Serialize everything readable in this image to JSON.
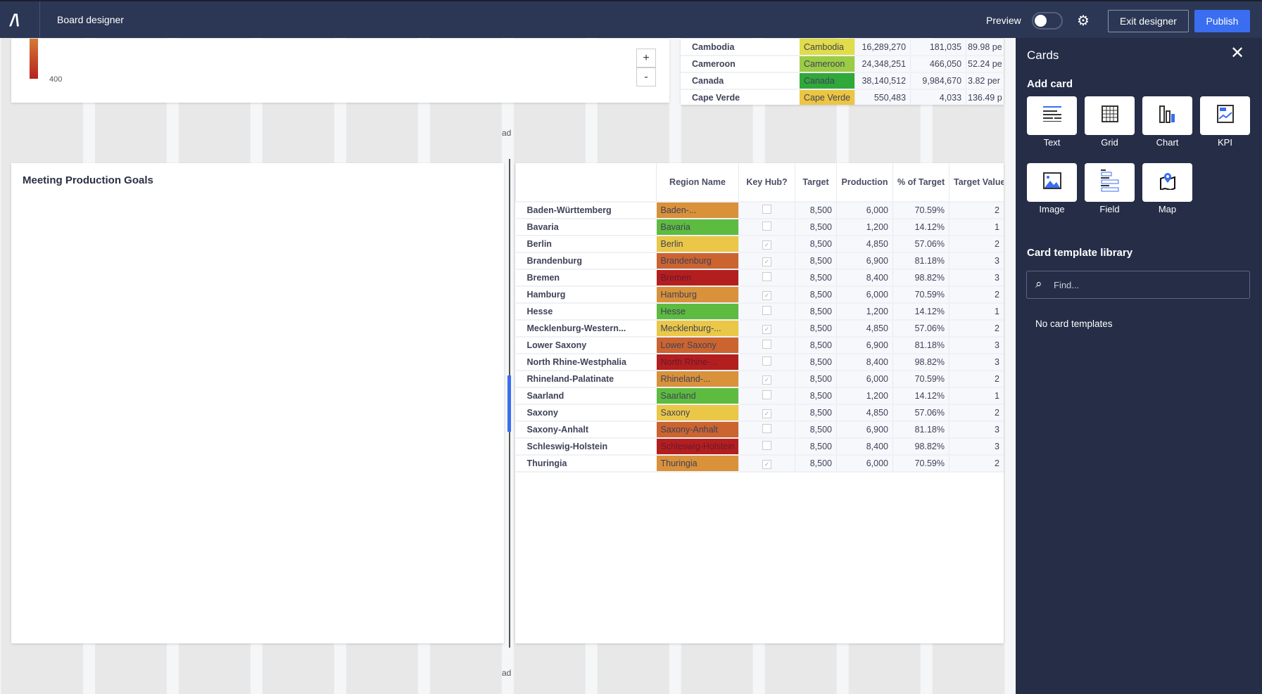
{
  "header": {
    "title": "Board designer",
    "preview_label": "Preview",
    "preview_on": false,
    "exit_label": "Exit designer",
    "publish_label": "Publish"
  },
  "map_card": {
    "legend_label": "400",
    "zoom_in": "+",
    "zoom_out": "-"
  },
  "canvas": {
    "placeholder_text": "ad"
  },
  "country_table": {
    "rows": [
      {
        "name": "Cambodia",
        "region": "Cambodia",
        "color": "#e1dc4a",
        "c1": "16,289,270",
        "c2": "181,035",
        "c3": "89.98 pe"
      },
      {
        "name": "Cameroon",
        "region": "Cameroon",
        "color": "#9ccb45",
        "c1": "24,348,251",
        "c2": "466,050",
        "c3": "52.24 pe"
      },
      {
        "name": "Canada",
        "region": "Canada",
        "color": "#31a83a",
        "c1": "38,140,512",
        "c2": "9,984,670",
        "c3": "3.82 per"
      },
      {
        "name": "Cape Verde",
        "region": "Cape Verde",
        "color": "#ecc543",
        "c1": "550,483",
        "c2": "4,033",
        "c3": "136.49 p"
      }
    ]
  },
  "goals_card": {
    "title": "Meeting Production Goals"
  },
  "region_table": {
    "headers": [
      "",
      "Region Name",
      "Key Hub?",
      "Target",
      "Production",
      "% of Target",
      "Target Value"
    ],
    "rows": [
      {
        "name": "Baden-Württemberg",
        "region": "Baden-...",
        "color": "#d9913a",
        "hub": false,
        "target": "8,500",
        "prod": "6,000",
        "pct": "70.59%",
        "tv": "2"
      },
      {
        "name": "Bavaria",
        "region": "Bavaria",
        "color": "#5dbb3f",
        "hub": false,
        "target": "8,500",
        "prod": "1,200",
        "pct": "14.12%",
        "tv": "1"
      },
      {
        "name": "Berlin",
        "region": "Berlin",
        "color": "#ebc748",
        "hub": true,
        "target": "8,500",
        "prod": "4,850",
        "pct": "57.06%",
        "tv": "2"
      },
      {
        "name": "Brandenburg",
        "region": "Brandenburg",
        "color": "#cc6430",
        "hub": true,
        "target": "8,500",
        "prod": "6,900",
        "pct": "81.18%",
        "tv": "3"
      },
      {
        "name": "Bremen",
        "region": "Bremen",
        "color": "#b31f1f",
        "hub": false,
        "target": "8,500",
        "prod": "8,400",
        "pct": "98.82%",
        "tv": "3"
      },
      {
        "name": "Hamburg",
        "region": "Hamburg",
        "color": "#d9913a",
        "hub": true,
        "target": "8,500",
        "prod": "6,000",
        "pct": "70.59%",
        "tv": "2"
      },
      {
        "name": "Hesse",
        "region": "Hesse",
        "color": "#5dbb3f",
        "hub": false,
        "target": "8,500",
        "prod": "1,200",
        "pct": "14.12%",
        "tv": "1"
      },
      {
        "name": "Mecklenburg-Western...",
        "region": "Mecklenburg-...",
        "color": "#ebc748",
        "hub": true,
        "target": "8,500",
        "prod": "4,850",
        "pct": "57.06%",
        "tv": "2"
      },
      {
        "name": "Lower Saxony",
        "region": "Lower Saxony",
        "color": "#cc6430",
        "hub": false,
        "target": "8,500",
        "prod": "6,900",
        "pct": "81.18%",
        "tv": "3"
      },
      {
        "name": "North Rhine-Westphalia",
        "region": "North Rhine-...",
        "color": "#b31f1f",
        "hub": false,
        "target": "8,500",
        "prod": "8,400",
        "pct": "98.82%",
        "tv": "3"
      },
      {
        "name": "Rhineland-Palatinate",
        "region": "Rhineland-...",
        "color": "#d9913a",
        "hub": true,
        "target": "8,500",
        "prod": "6,000",
        "pct": "70.59%",
        "tv": "2"
      },
      {
        "name": "Saarland",
        "region": "Saarland",
        "color": "#5dbb3f",
        "hub": false,
        "target": "8,500",
        "prod": "1,200",
        "pct": "14.12%",
        "tv": "1"
      },
      {
        "name": "Saxony",
        "region": "Saxony",
        "color": "#ebc748",
        "hub": true,
        "target": "8,500",
        "prod": "4,850",
        "pct": "57.06%",
        "tv": "2"
      },
      {
        "name": "Saxony-Anhalt",
        "region": "Saxony-Anhalt",
        "color": "#cc6430",
        "hub": false,
        "target": "8,500",
        "prod": "6,900",
        "pct": "81.18%",
        "tv": "3"
      },
      {
        "name": "Schleswig-Holstein",
        "region": "Schleswig-Holstein",
        "color": "#b31f1f",
        "hub": false,
        "target": "8,500",
        "prod": "8,400",
        "pct": "98.82%",
        "tv": "3"
      },
      {
        "name": "Thuringia",
        "region": "Thuringia",
        "color": "#d9913a",
        "hub": true,
        "target": "8,500",
        "prod": "6,000",
        "pct": "70.59%",
        "tv": "2"
      }
    ]
  },
  "sidebar": {
    "title": "Cards",
    "add_card_label": "Add card",
    "cards": [
      {
        "label": "Text",
        "icon": "text-icon"
      },
      {
        "label": "Grid",
        "icon": "grid-icon"
      },
      {
        "label": "Chart",
        "icon": "chart-icon"
      },
      {
        "label": "KPI",
        "icon": "kpi-icon"
      },
      {
        "label": "Image",
        "icon": "image-icon"
      },
      {
        "label": "Field",
        "icon": "field-icon"
      },
      {
        "label": "Map",
        "icon": "map-icon"
      }
    ],
    "library_label": "Card template library",
    "search_placeholder": "Find...",
    "empty_text": "No card templates"
  },
  "colors": {
    "header": "#2b3754",
    "sidebar": "#252d47",
    "accent": "#3a6df0"
  }
}
